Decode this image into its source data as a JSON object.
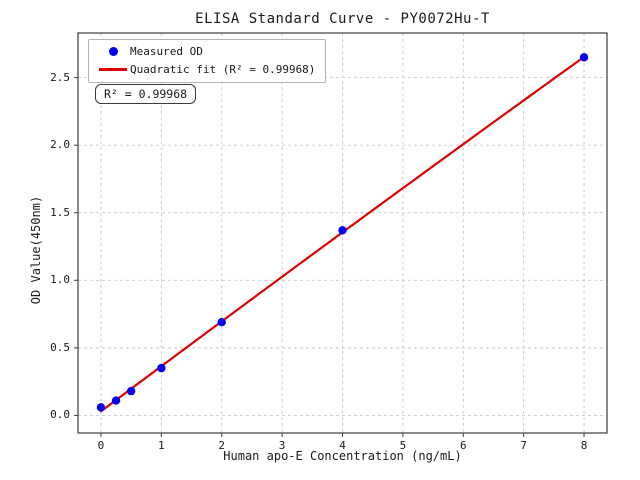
{
  "title": "ELISA Standard Curve - PY0072Hu-T",
  "chart_data": {
    "type": "scatter",
    "title": "ELISA Standard Curve - PY0072Hu-T",
    "xlabel": "Human apo-E Concentration (ng/mL)",
    "ylabel": "OD Value(450nm)",
    "series": [
      {
        "name": "Measured OD",
        "type": "scatter",
        "color": "#0000ee",
        "x": [
          0,
          0.25,
          0.5,
          1,
          2,
          4,
          8
        ],
        "y": [
          0.06,
          0.11,
          0.18,
          0.35,
          0.69,
          1.37,
          2.65
        ]
      },
      {
        "name": "Quadratic fit (R² = 0.99968)",
        "type": "line",
        "fit": "quadratic",
        "color": "#e00000",
        "r_squared": 0.99968
      }
    ],
    "xticks": [
      0,
      1,
      2,
      3,
      4,
      5,
      6,
      7,
      8
    ],
    "xtick_labels": [
      "0",
      "1",
      "2",
      "3",
      "4",
      "5",
      "6",
      "7",
      "8"
    ],
    "yticks": [
      0.0,
      0.5,
      1.0,
      1.5,
      2.0,
      2.5
    ],
    "ytick_labels": [
      "0.0",
      "0.5",
      "1.0",
      "1.5",
      "2.0",
      "2.5"
    ],
    "xlim": [
      -0.38,
      8.38
    ],
    "ylim": [
      -0.13,
      2.83
    ],
    "grid": true,
    "grid_style": "dashed",
    "legend_position": "upper left"
  },
  "annotation": {
    "text": "R² = 0.99968"
  },
  "colors": {
    "points": "#0000ee",
    "fit_line": "#e00000",
    "grid": "#c9c9c9",
    "spine": "#3c3c3c",
    "background": "#ffffff"
  }
}
